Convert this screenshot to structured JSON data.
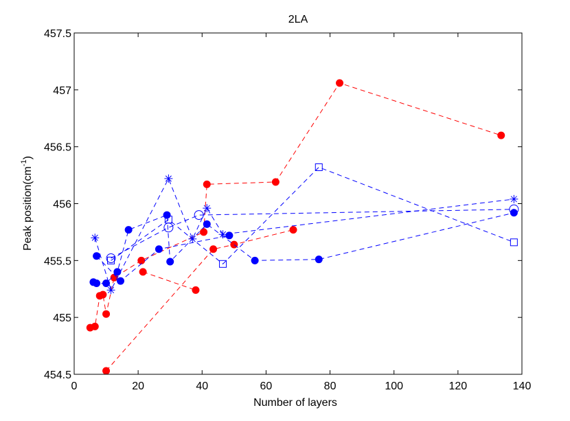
{
  "chart_data": {
    "type": "scatter",
    "title": "2LA",
    "xlabel": "Number of layers",
    "ylabel_main": "Peak position(cm",
    "ylabel_sup": "-1",
    "ylabel_close": ")",
    "xlim": [
      0,
      140
    ],
    "ylim": [
      454.5,
      457.5
    ],
    "xticks": [
      0,
      20,
      40,
      60,
      80,
      100,
      120,
      140
    ],
    "yticks": [
      454.5,
      455,
      455.5,
      456,
      456.5,
      457,
      457.5
    ],
    "xtick_labels": [
      "0",
      "20",
      "40",
      "60",
      "80",
      "100",
      "120",
      "140"
    ],
    "ytick_labels": [
      "454.5",
      "455",
      "455.5",
      "456",
      "456.5",
      "457",
      "457.5"
    ],
    "grid": false,
    "colors": {
      "red": "#ff0000",
      "blue": "#0000ff"
    },
    "series": [
      {
        "name": "red-series-1",
        "color": "#ff0000",
        "marker": "filled-circle",
        "line": "dashed",
        "points": [
          [
            5,
            454.91
          ],
          [
            6.5,
            454.92
          ],
          [
            8,
            455.19
          ],
          [
            9,
            455.2
          ],
          [
            10,
            455.03
          ],
          [
            12.5,
            455.35
          ],
          [
            21,
            455.5
          ],
          [
            40.5,
            455.75
          ],
          [
            41.5,
            456.17
          ],
          [
            63,
            456.19
          ],
          [
            83,
            457.06
          ],
          [
            133.5,
            456.6
          ]
        ]
      },
      {
        "name": "red-series-2",
        "color": "#ff0000",
        "marker": "filled-circle",
        "line": "dashed",
        "points": [
          [
            10,
            454.53
          ],
          [
            43.5,
            455.6
          ],
          [
            50,
            455.64
          ],
          [
            68.5,
            455.77
          ]
        ]
      },
      {
        "name": "red-series-3",
        "color": "#ff0000",
        "marker": "filled-circle",
        "line": "dashed",
        "points": [
          [
            21.5,
            455.4
          ],
          [
            38,
            455.24
          ]
        ]
      },
      {
        "name": "blue-filled-series-1",
        "color": "#0000ff",
        "marker": "filled-circle",
        "line": "dashed",
        "points": [
          [
            6,
            455.31
          ],
          [
            7,
            455.3
          ],
          [
            10,
            455.3
          ],
          [
            13.5,
            455.4
          ],
          [
            17,
            455.77
          ],
          [
            29,
            455.9
          ],
          [
            30,
            455.49
          ],
          [
            41.5,
            455.82
          ],
          [
            56.5,
            455.5
          ],
          [
            76.5,
            455.51
          ],
          [
            137.5,
            455.92
          ]
        ]
      },
      {
        "name": "blue-filled-series-2",
        "color": "#0000ff",
        "marker": "filled-circle",
        "line": "dashed",
        "points": [
          [
            7,
            455.54
          ],
          [
            14.5,
            455.32
          ],
          [
            26.5,
            455.6
          ],
          [
            48.5,
            455.72
          ]
        ]
      },
      {
        "name": "blue-open-circle-series",
        "color": "#0000ff",
        "marker": "open-circle",
        "line": "dashed",
        "points": [
          [
            11.5,
            455.52
          ],
          [
            29.5,
            455.79
          ],
          [
            39,
            455.9
          ],
          [
            137.5,
            455.95
          ]
        ]
      },
      {
        "name": "blue-square-series",
        "color": "#0000ff",
        "marker": "open-square",
        "line": "dashed",
        "points": [
          [
            11.5,
            455.5
          ],
          [
            29.5,
            455.86
          ],
          [
            46.5,
            455.47
          ],
          [
            76.5,
            456.32
          ],
          [
            137.5,
            455.66
          ]
        ]
      },
      {
        "name": "blue-star-series",
        "color": "#0000ff",
        "marker": "star",
        "line": "dashed",
        "points": [
          [
            6.5,
            455.7
          ],
          [
            11.5,
            455.24
          ],
          [
            29.5,
            456.22
          ],
          [
            37,
            455.69
          ],
          [
            41.5,
            455.96
          ],
          [
            46.5,
            455.73
          ],
          [
            137.5,
            456.04
          ]
        ]
      }
    ]
  }
}
